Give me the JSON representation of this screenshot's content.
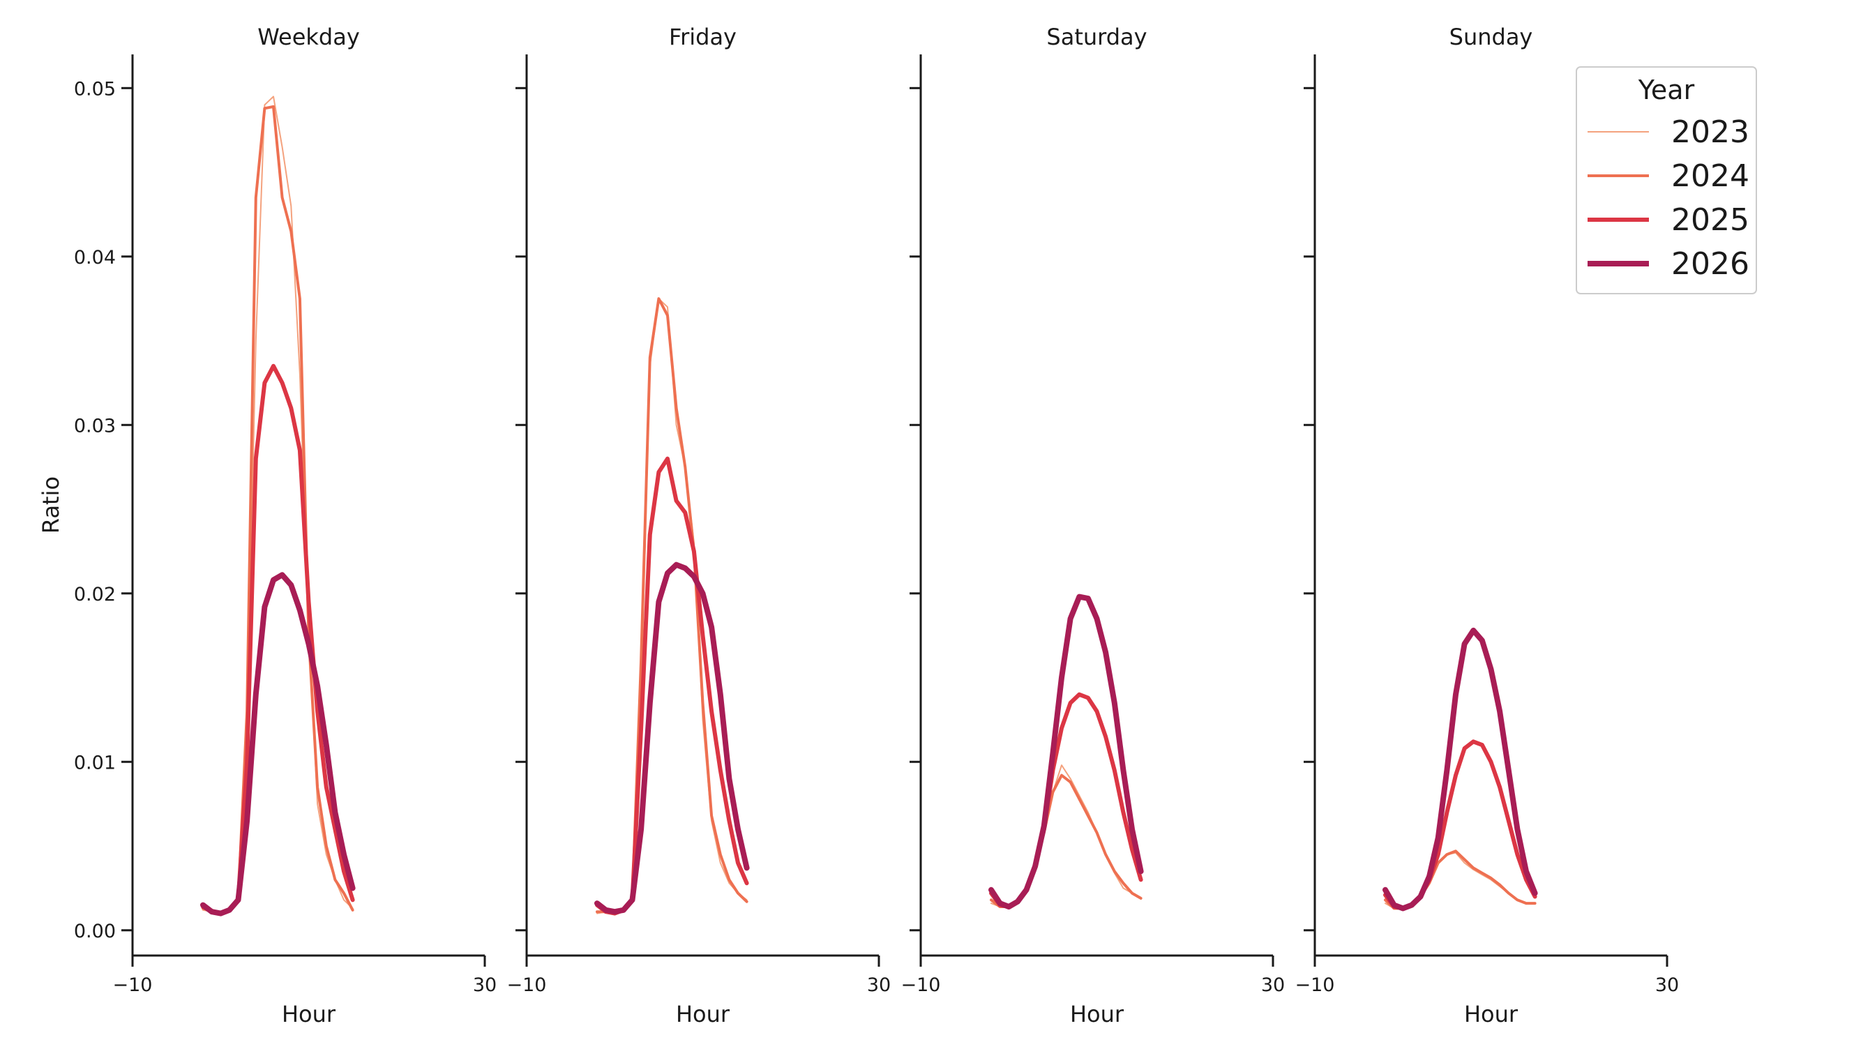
{
  "chart_data": {
    "type": "line",
    "panels": [
      {
        "title": "Weekday",
        "series": [
          {
            "name": "2023",
            "values": [
              0.0012,
              0.0011,
              0.001,
              0.0012,
              0.0018,
              0.012,
              0.035,
              0.049,
              0.0495,
              0.0465,
              0.043,
              0.033,
              0.018,
              0.0075,
              0.0045,
              0.003,
              0.0018,
              0.0013
            ]
          },
          {
            "name": "2024",
            "values": [
              0.0013,
              0.0012,
              0.001,
              0.0012,
              0.0018,
              0.013,
              0.0435,
              0.0488,
              0.0489,
              0.0435,
              0.0415,
              0.0375,
              0.0175,
              0.0085,
              0.005,
              0.003,
              0.0022,
              0.0012
            ]
          },
          {
            "name": "2025",
            "values": [
              0.0014,
              0.0011,
              0.001,
              0.0012,
              0.0018,
              0.01,
              0.028,
              0.0325,
              0.0335,
              0.0325,
              0.031,
              0.0285,
              0.0195,
              0.013,
              0.0085,
              0.006,
              0.0035,
              0.0018
            ]
          },
          {
            "name": "2026",
            "values": [
              0.0015,
              0.0011,
              0.001,
              0.0012,
              0.0018,
              0.0065,
              0.014,
              0.0192,
              0.0208,
              0.0211,
              0.0205,
              0.019,
              0.017,
              0.0145,
              0.011,
              0.007,
              0.0045,
              0.0025
            ]
          }
        ]
      },
      {
        "title": "Friday",
        "series": [
          {
            "name": "2023",
            "values": [
              0.001,
              0.0011,
              0.001,
              0.0012,
              0.0018,
              0.014,
              0.0335,
              0.0375,
              0.037,
              0.03,
              0.0275,
              0.023,
              0.0125,
              0.0065,
              0.004,
              0.0028,
              0.0022,
              0.0018
            ]
          },
          {
            "name": "2024",
            "values": [
              0.0011,
              0.0011,
              0.001,
              0.0012,
              0.0018,
              0.016,
              0.034,
              0.0375,
              0.0365,
              0.031,
              0.0275,
              0.0225,
              0.0135,
              0.0068,
              0.0045,
              0.003,
              0.0022,
              0.0017
            ]
          },
          {
            "name": "2025",
            "values": [
              0.0015,
              0.0011,
              0.001,
              0.0012,
              0.0018,
              0.012,
              0.0235,
              0.0272,
              0.028,
              0.0255,
              0.0248,
              0.0225,
              0.0175,
              0.013,
              0.0095,
              0.0065,
              0.004,
              0.0028
            ]
          },
          {
            "name": "2026",
            "values": [
              0.0016,
              0.0012,
              0.0011,
              0.0012,
              0.0018,
              0.006,
              0.0135,
              0.0195,
              0.0212,
              0.0217,
              0.0215,
              0.021,
              0.02,
              0.018,
              0.014,
              0.009,
              0.006,
              0.0037
            ]
          }
        ]
      },
      {
        "title": "Saturday",
        "series": [
          {
            "name": "2023",
            "values": [
              0.0016,
              0.0014,
              0.0014,
              0.0017,
              0.0024,
              0.0038,
              0.0058,
              0.0082,
              0.0098,
              0.009,
              0.008,
              0.007,
              0.0058,
              0.0045,
              0.0034,
              0.0025,
              0.0022,
              0.0019
            ]
          },
          {
            "name": "2024",
            "values": [
              0.0018,
              0.0014,
              0.0014,
              0.0017,
              0.0024,
              0.0038,
              0.0058,
              0.0082,
              0.0092,
              0.0088,
              0.0078,
              0.0068,
              0.0058,
              0.0045,
              0.0035,
              0.0028,
              0.0022,
              0.0019
            ]
          },
          {
            "name": "2025",
            "values": [
              0.0022,
              0.0015,
              0.0014,
              0.0017,
              0.0024,
              0.0038,
              0.006,
              0.0095,
              0.012,
              0.0135,
              0.014,
              0.0138,
              0.013,
              0.0115,
              0.0095,
              0.007,
              0.0048,
              0.003
            ]
          },
          {
            "name": "2026",
            "values": [
              0.0024,
              0.0016,
              0.0014,
              0.0017,
              0.0024,
              0.0038,
              0.0062,
              0.0105,
              0.015,
              0.0185,
              0.0198,
              0.0197,
              0.0185,
              0.0165,
              0.0135,
              0.0095,
              0.006,
              0.0035
            ]
          }
        ]
      },
      {
        "title": "Sunday",
        "series": [
          {
            "name": "2023",
            "values": [
              0.0016,
              0.0013,
              0.0013,
              0.0015,
              0.002,
              0.0028,
              0.004,
              0.0045,
              0.0046,
              0.004,
              0.0036,
              0.0033,
              0.003,
              0.0026,
              0.0022,
              0.0018,
              0.0016,
              0.0016
            ]
          },
          {
            "name": "2024",
            "values": [
              0.0018,
              0.0013,
              0.0013,
              0.0015,
              0.002,
              0.0028,
              0.004,
              0.0045,
              0.0047,
              0.0042,
              0.0037,
              0.0034,
              0.0031,
              0.0027,
              0.0022,
              0.0018,
              0.0016,
              0.0016
            ]
          },
          {
            "name": "2025",
            "values": [
              0.0021,
              0.0014,
              0.0013,
              0.0015,
              0.002,
              0.003,
              0.0045,
              0.007,
              0.0092,
              0.0108,
              0.0112,
              0.011,
              0.01,
              0.0085,
              0.0065,
              0.0045,
              0.003,
              0.002
            ]
          },
          {
            "name": "2026",
            "values": [
              0.0024,
              0.0015,
              0.0013,
              0.0015,
              0.002,
              0.0032,
              0.0055,
              0.0095,
              0.014,
              0.017,
              0.0178,
              0.0172,
              0.0155,
              0.013,
              0.0095,
              0.006,
              0.0035,
              0.0022
            ]
          }
        ]
      }
    ],
    "x": [
      -2,
      -1,
      0,
      1,
      2,
      3,
      4,
      5,
      6,
      7,
      8,
      9,
      10,
      11,
      12,
      13,
      14,
      15
    ],
    "xlabel": "Hour",
    "ylabel": "Ratio",
    "xlim": [
      -10,
      30
    ],
    "ylim": [
      -0.0015,
      0.052
    ],
    "xticks": [
      "-10",
      "30"
    ],
    "yticks": [
      "0.00",
      "0.01",
      "0.02",
      "0.03",
      "0.04",
      "0.05"
    ],
    "legend": {
      "title": "Year",
      "position": "top-right",
      "entries": [
        "2023",
        "2024",
        "2025",
        "2026"
      ]
    },
    "colors": {
      "2023": "#f4a27e",
      "2024": "#ee7051",
      "2025": "#dc3644",
      "2026": "#a81d55"
    },
    "line_widths": {
      "2023": 2,
      "2024": 4,
      "2025": 6,
      "2026": 8
    },
    "grid": false
  }
}
